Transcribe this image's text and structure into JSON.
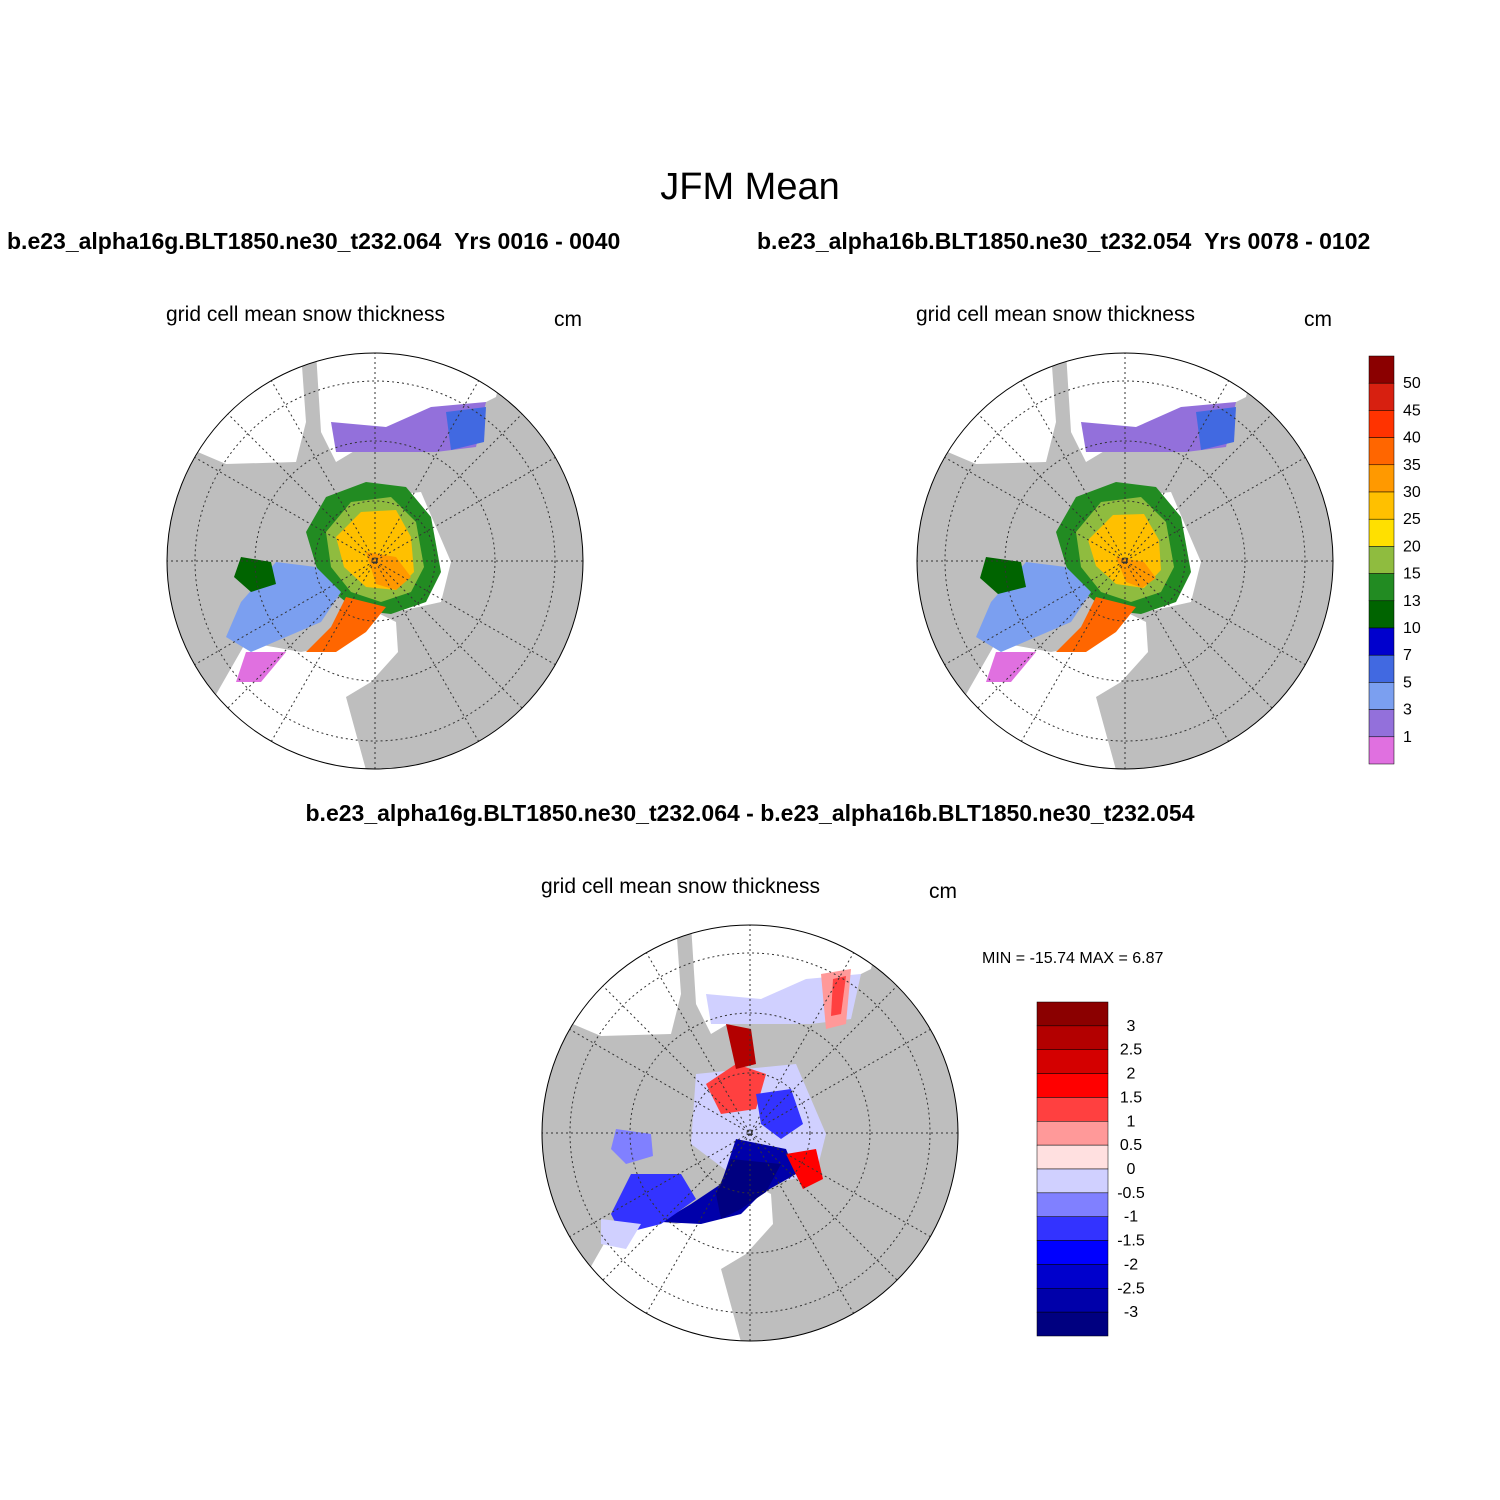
{
  "title": "JFM Mean",
  "case1": {
    "name": "b.e23_alpha16g.BLT1850.ne30_t232.064",
    "years": "Yrs 0016 - 0040"
  },
  "case2": {
    "name": "b.e23_alpha16b.BLT1850.ne30_t232.054",
    "years": "Yrs 0078 - 0102"
  },
  "diff_title": "b.e23_alpha16g.BLT1850.ne30_t232.064 - b.e23_alpha16b.BLT1850.ne30_t232.054",
  "panels": {
    "left": {
      "title": "grid cell mean snow thickness",
      "units": "cm"
    },
    "right": {
      "title": "grid cell mean snow thickness",
      "units": "cm"
    },
    "diff": {
      "title": "grid cell mean snow thickness",
      "units": "cm",
      "minmax": "MIN = -15.74 MAX =   6.87"
    }
  },
  "chart_data": [
    {
      "type": "heatmap",
      "projection": "north polar stereographic",
      "variable": "grid cell mean snow thickness",
      "units": "cm",
      "colorbar": {
        "labels": [
          "1",
          "3",
          "5",
          "7",
          "10",
          "13",
          "15",
          "20",
          "25",
          "30",
          "35",
          "40",
          "45",
          "50"
        ],
        "colors": [
          "#e070e0",
          "#9370db",
          "#7b9ff0",
          "#4169e1",
          "#0000cd",
          "#006400",
          "#228b22",
          "#8fbc3f",
          "#ffe000",
          "#ffc000",
          "#ff9900",
          "#ff6600",
          "#ff3300",
          "#d72010",
          "#8b0000"
        ]
      }
    },
    {
      "type": "heatmap",
      "projection": "north polar stereographic",
      "variable": "grid cell mean snow thickness",
      "units": "cm",
      "min": -15.74,
      "max": 6.87,
      "colorbar": {
        "labels": [
          "3",
          "2.5",
          "2",
          "1.5",
          "1",
          "0.5",
          "0",
          "-0.5",
          "-1",
          "-1.5",
          "-2",
          "-2.5",
          "-3"
        ],
        "colors": [
          "#8b0000",
          "#b30000",
          "#d40000",
          "#ff0000",
          "#ff4040",
          "#ff9999",
          "#ffe0e0",
          "#d0d0ff",
          "#8080ff",
          "#3333ff",
          "#0000ff",
          "#0000cc",
          "#0000aa",
          "#000080"
        ]
      }
    }
  ],
  "colors": {
    "land": "#bebebe",
    "ocean": "#ffffff",
    "coast": "#000000"
  }
}
